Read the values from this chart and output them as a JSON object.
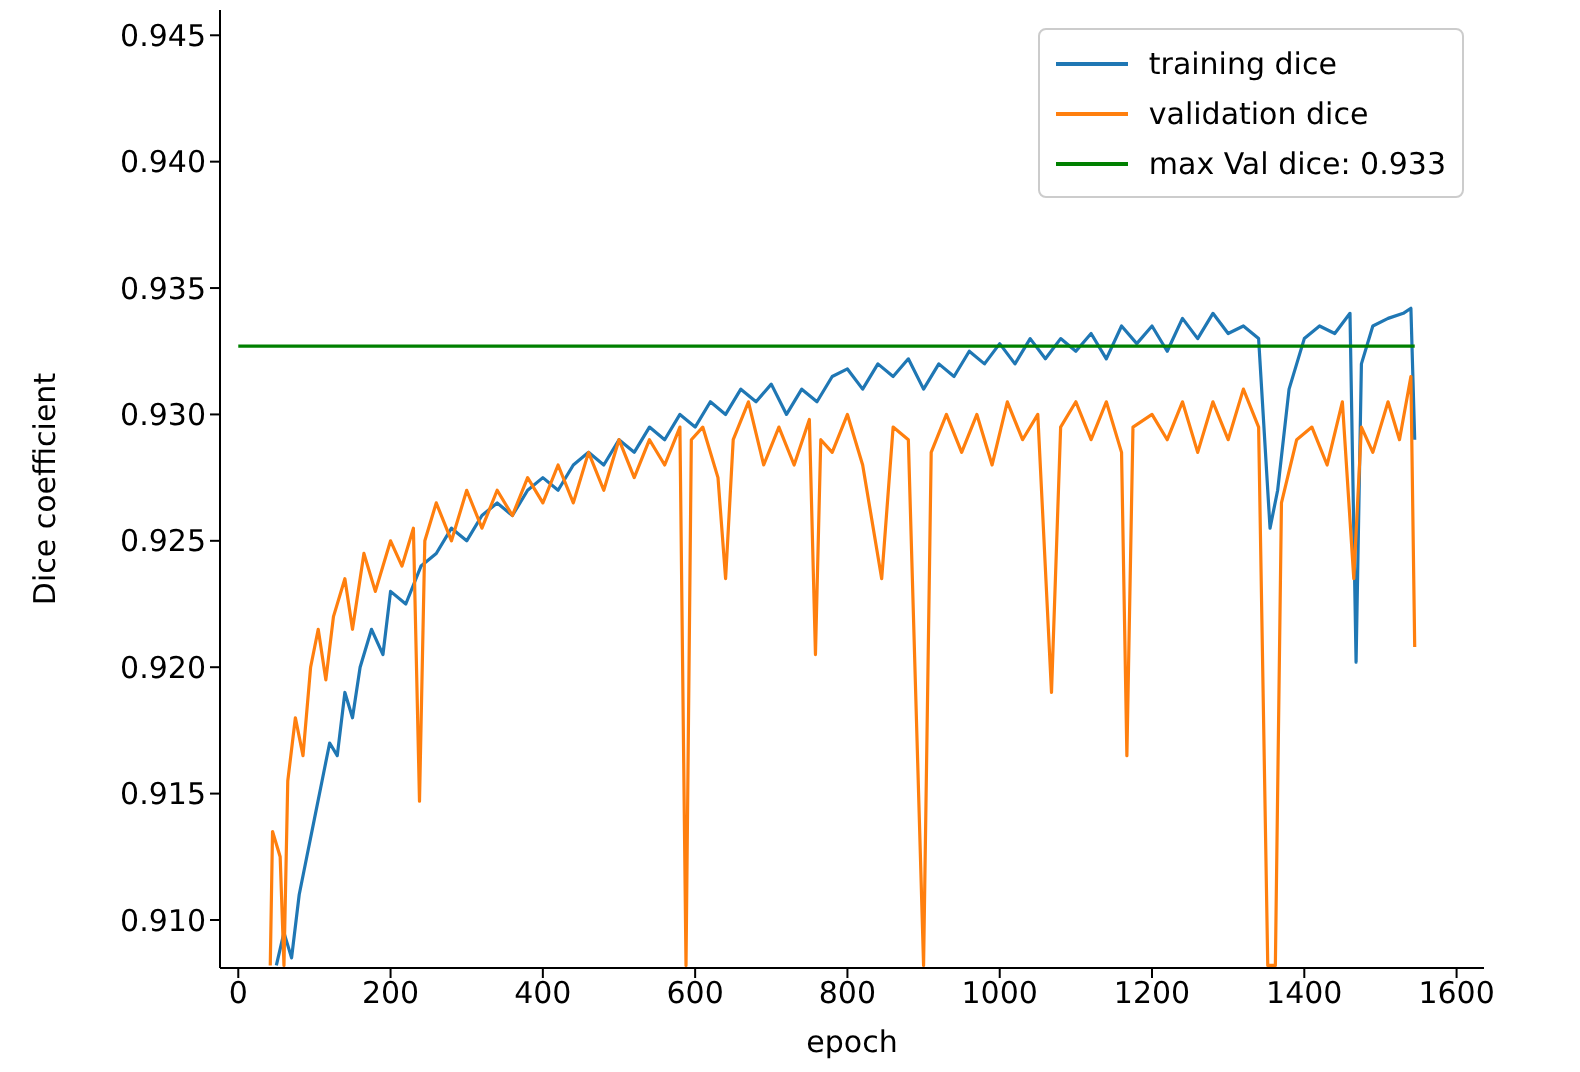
{
  "chart_data": {
    "type": "line",
    "xlabel": "epoch",
    "ylabel": "Dice coefficient",
    "xlim": [
      -24,
      1636
    ],
    "ylim": [
      0.9081,
      0.946
    ],
    "xticks": [
      0,
      200,
      400,
      600,
      800,
      1000,
      1200,
      1400,
      1600
    ],
    "yticks": [
      {
        "value": 0.91,
        "label": "0.910"
      },
      {
        "value": 0.915,
        "label": "0.915"
      },
      {
        "value": 0.92,
        "label": "0.920"
      },
      {
        "value": 0.925,
        "label": "0.925"
      },
      {
        "value": 0.93,
        "label": "0.930"
      },
      {
        "value": 0.935,
        "label": "0.935"
      },
      {
        "value": 0.94,
        "label": "0.940"
      },
      {
        "value": 0.945,
        "label": "0.945"
      }
    ],
    "legend": "top right",
    "series": [
      {
        "name": "training dice",
        "color": "#1f77b4",
        "x": [
          50,
          60,
          70,
          80,
          90,
          100,
          110,
          120,
          130,
          140,
          150,
          160,
          175,
          190,
          200,
          220,
          240,
          260,
          280,
          300,
          320,
          340,
          360,
          380,
          400,
          420,
          440,
          460,
          480,
          500,
          520,
          540,
          560,
          580,
          600,
          620,
          640,
          660,
          680,
          700,
          720,
          740,
          760,
          780,
          800,
          820,
          840,
          860,
          880,
          900,
          920,
          940,
          960,
          980,
          1000,
          1020,
          1040,
          1060,
          1080,
          1100,
          1120,
          1140,
          1160,
          1180,
          1200,
          1220,
          1240,
          1260,
          1280,
          1300,
          1320,
          1340,
          1355,
          1365,
          1380,
          1400,
          1420,
          1440,
          1460,
          1468,
          1475,
          1490,
          1510,
          1530,
          1540,
          1545
        ],
        "values": [
          0.9082,
          0.9095,
          0.9085,
          0.911,
          0.9125,
          0.914,
          0.9155,
          0.917,
          0.9165,
          0.919,
          0.918,
          0.92,
          0.9215,
          0.9205,
          0.923,
          0.9225,
          0.924,
          0.9245,
          0.9255,
          0.925,
          0.926,
          0.9265,
          0.926,
          0.927,
          0.9275,
          0.927,
          0.928,
          0.9285,
          0.928,
          0.929,
          0.9285,
          0.9295,
          0.929,
          0.93,
          0.9295,
          0.9305,
          0.93,
          0.931,
          0.9305,
          0.9312,
          0.93,
          0.931,
          0.9305,
          0.9315,
          0.9318,
          0.931,
          0.932,
          0.9315,
          0.9322,
          0.931,
          0.932,
          0.9315,
          0.9325,
          0.932,
          0.9328,
          0.932,
          0.933,
          0.9322,
          0.933,
          0.9325,
          0.9332,
          0.9322,
          0.9335,
          0.9328,
          0.9335,
          0.9325,
          0.9338,
          0.933,
          0.934,
          0.9332,
          0.9335,
          0.933,
          0.9255,
          0.927,
          0.931,
          0.933,
          0.9335,
          0.9332,
          0.934,
          0.9202,
          0.932,
          0.9335,
          0.9338,
          0.934,
          0.9342,
          0.929
        ]
      },
      {
        "name": "validation dice",
        "color": "#ff7f0e",
        "x": [
          42,
          45,
          55,
          60,
          65,
          75,
          85,
          95,
          105,
          115,
          125,
          140,
          150,
          165,
          180,
          200,
          215,
          230,
          238,
          245,
          260,
          280,
          300,
          320,
          340,
          360,
          380,
          400,
          420,
          440,
          460,
          480,
          500,
          520,
          540,
          560,
          580,
          588,
          595,
          610,
          630,
          640,
          650,
          670,
          690,
          710,
          730,
          750,
          758,
          765,
          780,
          800,
          820,
          845,
          860,
          880,
          900,
          910,
          930,
          950,
          970,
          990,
          1010,
          1030,
          1050,
          1068,
          1080,
          1100,
          1120,
          1140,
          1160,
          1167,
          1175,
          1200,
          1220,
          1240,
          1260,
          1280,
          1300,
          1320,
          1340,
          1352,
          1362,
          1370,
          1390,
          1410,
          1430,
          1450,
          1465,
          1475,
          1490,
          1510,
          1525,
          1540,
          1545
        ],
        "values": [
          0.9082,
          0.9135,
          0.9125,
          0.9082,
          0.9155,
          0.918,
          0.9165,
          0.92,
          0.9215,
          0.9195,
          0.922,
          0.9235,
          0.9215,
          0.9245,
          0.923,
          0.925,
          0.924,
          0.9255,
          0.9147,
          0.925,
          0.9265,
          0.925,
          0.927,
          0.9255,
          0.927,
          0.926,
          0.9275,
          0.9265,
          0.928,
          0.9265,
          0.9285,
          0.927,
          0.929,
          0.9275,
          0.929,
          0.928,
          0.9295,
          0.9082,
          0.929,
          0.9295,
          0.9275,
          0.9235,
          0.929,
          0.9305,
          0.928,
          0.9295,
          0.928,
          0.9298,
          0.9205,
          0.929,
          0.9285,
          0.93,
          0.928,
          0.9235,
          0.9295,
          0.929,
          0.9082,
          0.9285,
          0.93,
          0.9285,
          0.93,
          0.928,
          0.9305,
          0.929,
          0.93,
          0.919,
          0.9295,
          0.9305,
          0.929,
          0.9305,
          0.9285,
          0.9165,
          0.9295,
          0.93,
          0.929,
          0.9305,
          0.9285,
          0.9305,
          0.929,
          0.931,
          0.9295,
          0.9082,
          0.9082,
          0.9265,
          0.929,
          0.9295,
          0.928,
          0.9305,
          0.9235,
          0.9295,
          0.9285,
          0.9305,
          0.929,
          0.9315,
          0.9208
        ]
      },
      {
        "name": "max Val dice: 0.933",
        "color": "#008000",
        "x": [
          0,
          1545
        ],
        "values": [
          0.9327,
          0.9327
        ]
      }
    ]
  }
}
